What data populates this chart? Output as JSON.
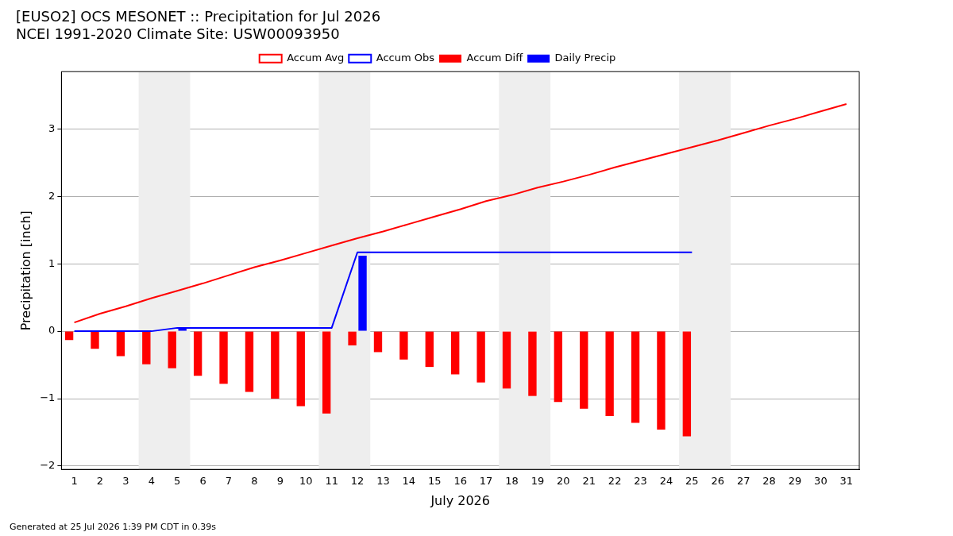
{
  "chart_data": {
    "type": "bar",
    "title": "[EUSO2] OCS MESONET :: Precipitation for Jul 2026",
    "subtitle": "NCEI 1991-2020 Climate Site: USW00093950",
    "xlabel": "July 2026",
    "ylabel": "Precipitation [inch]",
    "x": [
      1,
      2,
      3,
      4,
      5,
      6,
      7,
      8,
      9,
      10,
      11,
      12,
      13,
      14,
      15,
      16,
      17,
      18,
      19,
      20,
      21,
      22,
      23,
      24,
      25,
      26,
      27,
      28,
      29,
      30,
      31
    ],
    "xlim": [
      0.5,
      31.5
    ],
    "xticks": [
      1,
      2,
      3,
      4,
      5,
      6,
      7,
      8,
      9,
      10,
      11,
      12,
      13,
      14,
      15,
      16,
      17,
      18,
      19,
      20,
      21,
      22,
      23,
      24,
      25,
      26,
      27,
      28,
      29,
      30,
      31
    ],
    "ylim": [
      -2.05,
      3.85
    ],
    "yticks": [
      {
        "value": -2,
        "label": "−2"
      },
      {
        "value": -1,
        "label": "−1"
      },
      0,
      1,
      2,
      3
    ],
    "grid": "y",
    "legend": "top",
    "marker": "none",
    "line_style": "solid",
    "series": [
      {
        "name": "Accum Avg",
        "type": "line",
        "color": "#ff0000",
        "values": [
          0.13,
          0.26,
          0.37,
          0.49,
          0.6,
          0.71,
          0.83,
          0.95,
          1.05,
          1.16,
          1.27,
          1.38,
          1.48,
          1.59,
          1.7,
          1.81,
          1.93,
          2.02,
          2.13,
          2.22,
          2.32,
          2.43,
          2.53,
          2.63,
          2.73,
          2.83,
          2.94,
          3.05,
          3.15,
          3.26,
          3.37
        ]
      },
      {
        "name": "Accum Obs",
        "type": "line",
        "color": "#0000ff",
        "values": [
          0,
          0,
          0,
          0,
          0.05,
          0.05,
          0.05,
          0.05,
          0.05,
          0.05,
          0.05,
          1.17,
          1.17,
          1.17,
          1.17,
          1.17,
          1.17,
          1.17,
          1.17,
          1.17,
          1.17,
          1.17,
          1.17,
          1.17,
          1.17,
          null,
          null,
          null,
          null,
          null,
          null
        ]
      },
      {
        "name": "Accum Diff",
        "color": "#ff0000",
        "values": [
          -0.13,
          -0.26,
          -0.37,
          -0.49,
          -0.55,
          -0.66,
          -0.78,
          -0.9,
          -1.0,
          -1.11,
          -1.22,
          -0.21,
          -0.31,
          -0.42,
          -0.53,
          -0.64,
          -0.76,
          -0.85,
          -0.96,
          -1.05,
          -1.15,
          -1.26,
          -1.36,
          -1.46,
          -1.56,
          null,
          null,
          null,
          null,
          null,
          null
        ]
      },
      {
        "name": "Daily Precip",
        "color": "#0000ff",
        "values": [
          0,
          0,
          0,
          0,
          0.05,
          0,
          0,
          0,
          0,
          0,
          0,
          1.12,
          0,
          0,
          0,
          0,
          0,
          0,
          0,
          0,
          0,
          0,
          0,
          0,
          0,
          null,
          null,
          null,
          null,
          null,
          null
        ]
      }
    ],
    "bands": [
      {
        "axis": "x",
        "from": 3.5,
        "to": 5.5,
        "color": "#eeeeee"
      },
      {
        "axis": "x",
        "from": 10.5,
        "to": 12.5,
        "color": "#eeeeee"
      },
      {
        "axis": "x",
        "from": 17.5,
        "to": 19.5,
        "color": "#eeeeee"
      },
      {
        "axis": "x",
        "from": 24.5,
        "to": 26.5,
        "color": "#eeeeee"
      }
    ],
    "annotations": [
      "Generated at 25 Jul 2026 1:39 PM CDT in 0.39s"
    ]
  }
}
